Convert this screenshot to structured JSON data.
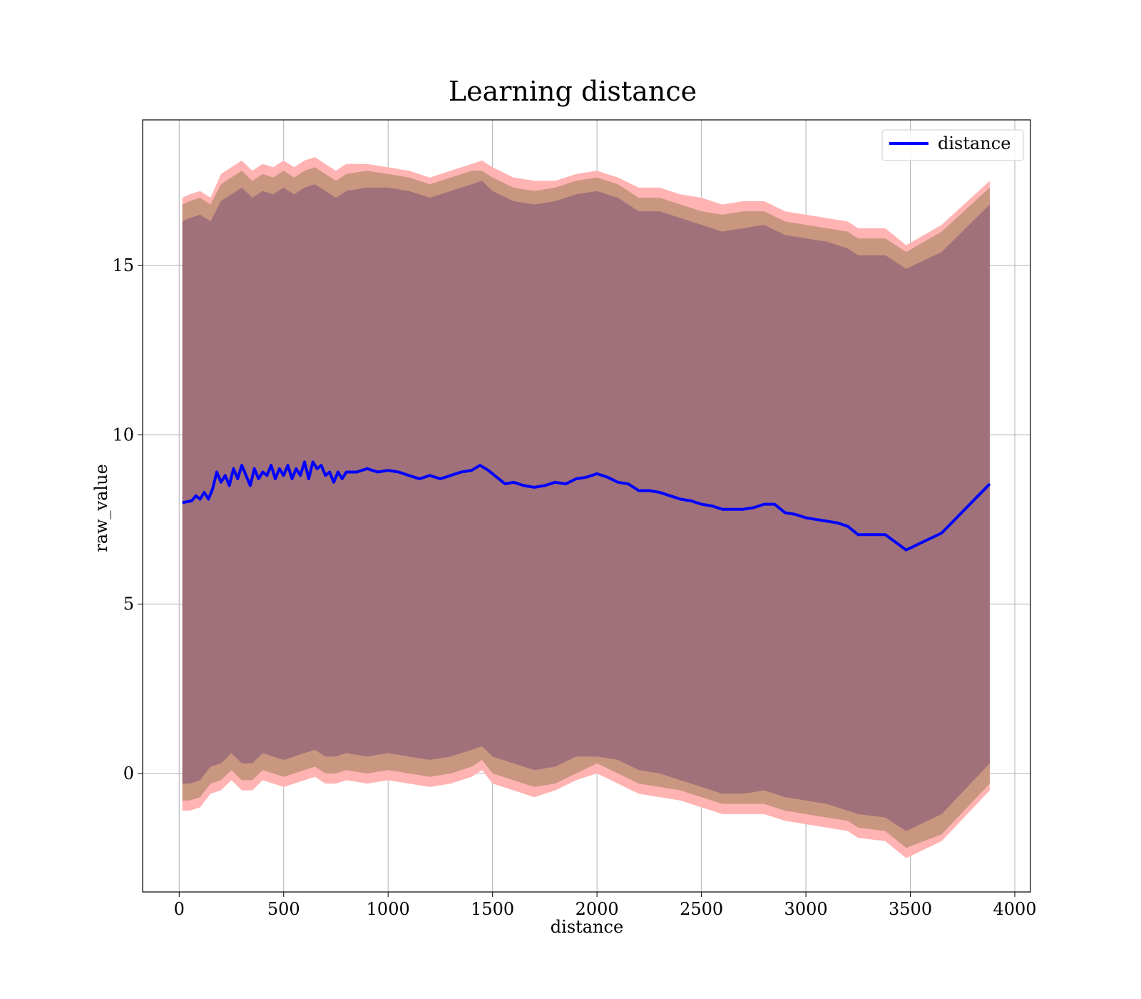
{
  "chart_data": {
    "type": "area",
    "title": "Learning distance",
    "xlabel": "distance",
    "ylabel": "raw_value",
    "xlim": [
      -175,
      4075
    ],
    "ylim": [
      -3.5,
      19.3
    ],
    "xticks": [
      0,
      500,
      1000,
      1500,
      2000,
      2500,
      3000,
      3500,
      4000
    ],
    "yticks": [
      0,
      5,
      10,
      15
    ],
    "grid": true,
    "legend_position": "top-right",
    "colors": {
      "line": "#0000ff",
      "band_outer": "#ffb3b3",
      "band_middle": "#c99680",
      "band_inner": "#a0717a"
    },
    "series": [
      {
        "name": "distance",
        "x": [
          15,
          60,
          80,
          100,
          120,
          140,
          160,
          180,
          200,
          220,
          240,
          260,
          280,
          300,
          320,
          340,
          360,
          380,
          400,
          420,
          440,
          460,
          480,
          500,
          520,
          540,
          560,
          580,
          600,
          620,
          640,
          660,
          680,
          700,
          720,
          740,
          760,
          780,
          800,
          850,
          900,
          950,
          1000,
          1050,
          1100,
          1150,
          1200,
          1250,
          1300,
          1350,
          1400,
          1440,
          1480,
          1520,
          1560,
          1600,
          1650,
          1700,
          1750,
          1800,
          1850,
          1900,
          1950,
          2000,
          2050,
          2100,
          2150,
          2200,
          2250,
          2300,
          2350,
          2400,
          2450,
          2500,
          2550,
          2600,
          2650,
          2700,
          2750,
          2800,
          2850,
          2900,
          2950,
          3000,
          3050,
          3100,
          3150,
          3200,
          3250,
          3300,
          3350,
          3380,
          3480,
          3650,
          3880
        ],
        "values": [
          8.0,
          8.05,
          8.2,
          8.1,
          8.3,
          8.1,
          8.4,
          8.9,
          8.6,
          8.8,
          8.5,
          9.0,
          8.7,
          9.1,
          8.8,
          8.5,
          9.0,
          8.7,
          8.9,
          8.8,
          9.1,
          8.7,
          9.0,
          8.8,
          9.1,
          8.7,
          9.0,
          8.8,
          9.2,
          8.7,
          9.2,
          9.0,
          9.1,
          8.8,
          8.9,
          8.6,
          8.9,
          8.7,
          8.9,
          8.9,
          9.0,
          8.9,
          8.95,
          8.9,
          8.8,
          8.7,
          8.8,
          8.7,
          8.8,
          8.9,
          8.95,
          9.1,
          8.95,
          8.75,
          8.55,
          8.6,
          8.5,
          8.45,
          8.5,
          8.6,
          8.55,
          8.7,
          8.75,
          8.85,
          8.75,
          8.6,
          8.55,
          8.35,
          8.35,
          8.3,
          8.2,
          8.1,
          8.05,
          7.95,
          7.9,
          7.8,
          7.8,
          7.8,
          7.85,
          7.95,
          7.95,
          7.7,
          7.65,
          7.55,
          7.5,
          7.45,
          7.4,
          7.3,
          7.05,
          7.05,
          7.05,
          7.05,
          6.6,
          7.1,
          8.55
        ]
      }
    ],
    "bands": [
      {
        "x": [
          15,
          50,
          100,
          150,
          200,
          250,
          300,
          350,
          400,
          450,
          500,
          550,
          600,
          650,
          700,
          750,
          800,
          900,
          1000,
          1100,
          1200,
          1300,
          1400,
          1450,
          1500,
          1600,
          1700,
          1800,
          1900,
          2000,
          2100,
          2200,
          2300,
          2400,
          2500,
          2600,
          2700,
          2800,
          2900,
          3000,
          3100,
          3200,
          3250,
          3380,
          3480,
          3650,
          3880
        ],
        "upper": [
          17.0,
          17.1,
          17.2,
          17.0,
          17.7,
          17.9,
          18.1,
          17.8,
          18.0,
          17.9,
          18.1,
          17.9,
          18.1,
          18.2,
          18.0,
          17.8,
          18.0,
          18.0,
          17.9,
          17.8,
          17.6,
          17.8,
          18.0,
          18.1,
          17.9,
          17.6,
          17.5,
          17.5,
          17.7,
          17.8,
          17.6,
          17.3,
          17.3,
          17.1,
          17.0,
          16.8,
          16.9,
          16.9,
          16.6,
          16.5,
          16.4,
          16.3,
          16.1,
          16.1,
          15.6,
          16.2,
          17.5
        ],
        "lower": [
          -1.1,
          -1.1,
          -1.0,
          -0.6,
          -0.5,
          -0.2,
          -0.5,
          -0.5,
          -0.2,
          -0.3,
          -0.4,
          -0.3,
          -0.2,
          -0.1,
          -0.3,
          -0.3,
          -0.2,
          -0.3,
          -0.2,
          -0.3,
          -0.4,
          -0.3,
          -0.1,
          0.1,
          -0.3,
          -0.5,
          -0.7,
          -0.5,
          -0.2,
          0.0,
          -0.3,
          -0.6,
          -0.7,
          -0.8,
          -1.0,
          -1.2,
          -1.2,
          -1.2,
          -1.4,
          -1.5,
          -1.6,
          -1.7,
          -1.9,
          -2.0,
          -2.5,
          -2.0,
          -0.5
        ]
      },
      {
        "x": [
          15,
          50,
          100,
          150,
          200,
          250,
          300,
          350,
          400,
          450,
          500,
          550,
          600,
          650,
          700,
          750,
          800,
          900,
          1000,
          1100,
          1200,
          1300,
          1400,
          1450,
          1500,
          1600,
          1700,
          1800,
          1900,
          2000,
          2100,
          2200,
          2300,
          2400,
          2500,
          2600,
          2700,
          2800,
          2900,
          3000,
          3100,
          3200,
          3250,
          3380,
          3480,
          3650,
          3880
        ],
        "upper": [
          16.8,
          16.9,
          17.0,
          16.8,
          17.4,
          17.6,
          17.8,
          17.5,
          17.7,
          17.6,
          17.8,
          17.6,
          17.8,
          17.9,
          17.7,
          17.5,
          17.7,
          17.8,
          17.7,
          17.6,
          17.4,
          17.6,
          17.8,
          17.8,
          17.6,
          17.3,
          17.2,
          17.3,
          17.5,
          17.6,
          17.4,
          17.0,
          17.0,
          16.8,
          16.6,
          16.5,
          16.6,
          16.6,
          16.3,
          16.2,
          16.1,
          16.0,
          15.8,
          15.8,
          15.4,
          16.0,
          17.3
        ],
        "lower": [
          -0.8,
          -0.8,
          -0.7,
          -0.3,
          -0.2,
          0.1,
          -0.2,
          -0.2,
          0.1,
          0.0,
          -0.1,
          0.0,
          0.1,
          0.2,
          0.0,
          0.0,
          0.1,
          0.0,
          0.1,
          0.0,
          -0.1,
          0.0,
          0.2,
          0.4,
          0.0,
          -0.2,
          -0.4,
          -0.3,
          0.0,
          0.3,
          0.0,
          -0.3,
          -0.4,
          -0.5,
          -0.7,
          -0.9,
          -0.9,
          -0.9,
          -1.1,
          -1.2,
          -1.3,
          -1.4,
          -1.6,
          -1.7,
          -2.2,
          -1.8,
          -0.3
        ]
      },
      {
        "x": [
          15,
          50,
          100,
          150,
          200,
          250,
          300,
          350,
          400,
          450,
          500,
          550,
          600,
          650,
          700,
          750,
          800,
          900,
          1000,
          1100,
          1200,
          1300,
          1400,
          1450,
          1500,
          1600,
          1700,
          1800,
          1900,
          2000,
          2100,
          2200,
          2300,
          2400,
          2500,
          2600,
          2700,
          2800,
          2900,
          3000,
          3100,
          3200,
          3250,
          3380,
          3480,
          3650,
          3880
        ],
        "upper": [
          16.3,
          16.4,
          16.5,
          16.3,
          16.9,
          17.1,
          17.3,
          17.0,
          17.2,
          17.1,
          17.3,
          17.1,
          17.3,
          17.4,
          17.2,
          17.0,
          17.2,
          17.3,
          17.3,
          17.2,
          17.0,
          17.2,
          17.4,
          17.5,
          17.2,
          16.9,
          16.8,
          16.9,
          17.1,
          17.2,
          17.0,
          16.6,
          16.6,
          16.4,
          16.2,
          16.0,
          16.1,
          16.2,
          15.9,
          15.8,
          15.7,
          15.5,
          15.3,
          15.3,
          14.9,
          15.4,
          16.8
        ],
        "lower": [
          -0.3,
          -0.3,
          -0.2,
          0.2,
          0.3,
          0.6,
          0.3,
          0.3,
          0.6,
          0.5,
          0.4,
          0.5,
          0.6,
          0.7,
          0.5,
          0.5,
          0.6,
          0.5,
          0.6,
          0.5,
          0.4,
          0.5,
          0.7,
          0.8,
          0.5,
          0.3,
          0.1,
          0.2,
          0.5,
          0.5,
          0.4,
          0.1,
          0.0,
          -0.2,
          -0.4,
          -0.6,
          -0.6,
          -0.5,
          -0.7,
          -0.8,
          -0.9,
          -1.1,
          -1.2,
          -1.3,
          -1.7,
          -1.2,
          0.3
        ]
      }
    ]
  }
}
